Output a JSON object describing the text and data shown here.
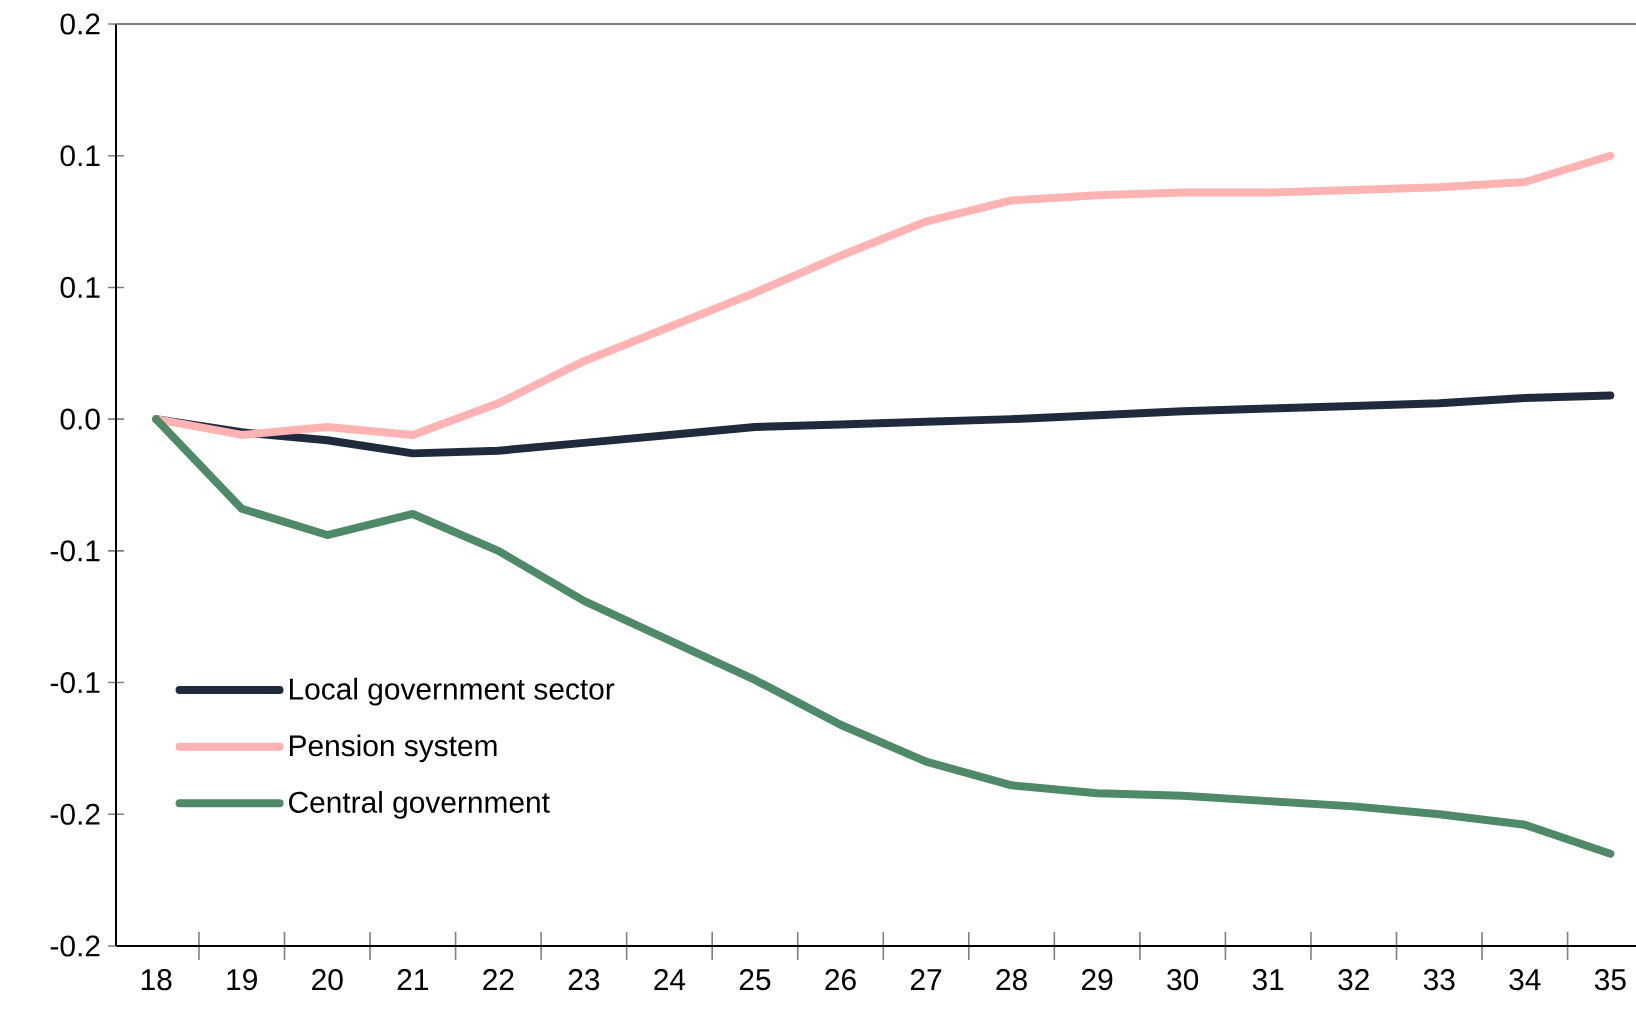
{
  "chart_data": {
    "type": "line",
    "categories": [
      "18",
      "19",
      "20",
      "21",
      "22",
      "23",
      "24",
      "25",
      "26",
      "27",
      "28",
      "29",
      "30",
      "31",
      "32",
      "33",
      "34",
      "35"
    ],
    "series": [
      {
        "name": "Local government sector",
        "color": "#1f2a3c",
        "values": [
          0,
          -0.005,
          -0.008,
          -0.013,
          -0.012,
          -0.009,
          -0.006,
          -0.003,
          -0.002,
          -0.001,
          0.0,
          0.0015,
          0.003,
          0.004,
          0.005,
          0.006,
          0.008,
          0.009
        ]
      },
      {
        "name": "Pension system",
        "color": "#ffb3b3",
        "values": [
          0,
          -0.006,
          -0.003,
          -0.006,
          0.006,
          0.022,
          0.035,
          0.048,
          0.062,
          0.075,
          0.083,
          0.085,
          0.086,
          0.086,
          0.087,
          0.088,
          0.09,
          0.1
        ]
      },
      {
        "name": "Central government",
        "color": "#4f8a68",
        "values": [
          0,
          -0.034,
          -0.044,
          -0.036,
          -0.05,
          -0.069,
          -0.084,
          -0.099,
          -0.116,
          -0.13,
          -0.139,
          -0.142,
          -0.143,
          -0.145,
          -0.147,
          -0.15,
          -0.154,
          -0.165
        ]
      }
    ],
    "ylim": [
      -0.2,
      0.15
    ],
    "yticks": [
      {
        "value": -0.2,
        "label": "-0.2"
      },
      {
        "value": -0.15,
        "label": "-0.2"
      },
      {
        "value": -0.1,
        "label": "-0.1"
      },
      {
        "value": -0.05,
        "label": "-0.1"
      },
      {
        "value": 0,
        "label": "0.0"
      },
      {
        "value": 0.05,
        "label": "0.1"
      },
      {
        "value": 0.1,
        "label": "0.1"
      },
      {
        "value": 0.15,
        "label": "0.2"
      }
    ],
    "legend": "bottom left",
    "marker": "none",
    "line_style": "solid"
  }
}
